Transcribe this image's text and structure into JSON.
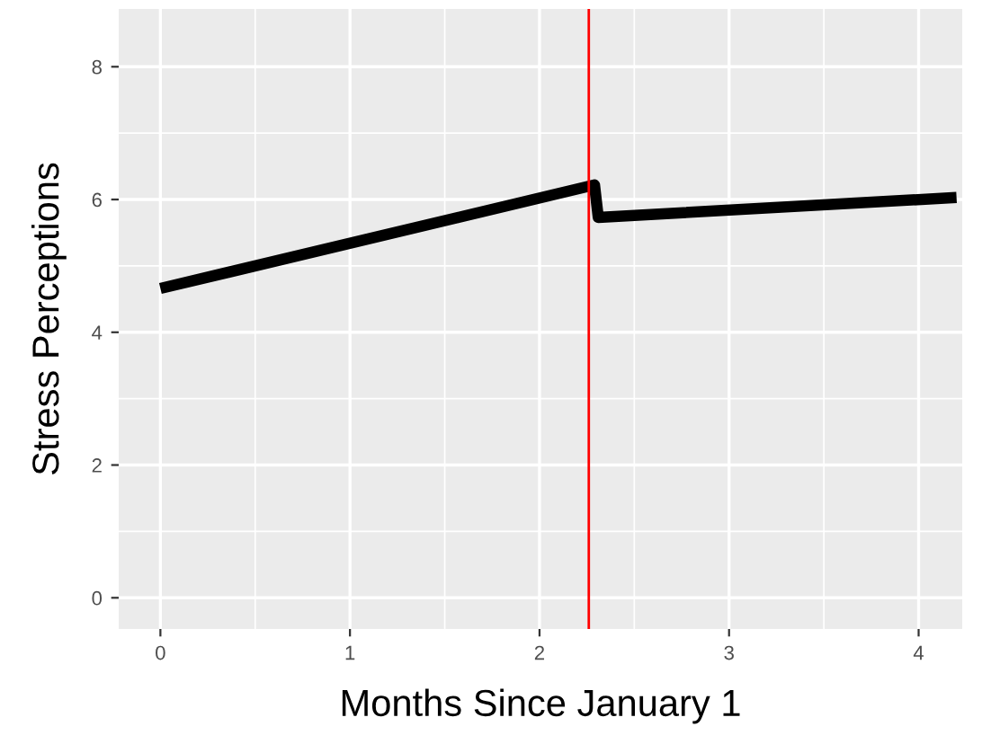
{
  "chart_data": {
    "type": "line",
    "xlabel": "Months Since January 1",
    "ylabel": "Stress Perceptions",
    "series": [
      {
        "color": "#000000",
        "x": [
          0,
          2.29,
          2.31,
          4.2
        ],
        "values": [
          4.66,
          6.22,
          5.73,
          6.03
        ]
      }
    ],
    "xlim": [
      -0.22,
      4.23
    ],
    "ylim": [
      -0.47,
      8.87
    ],
    "xticks": [
      0,
      1,
      2,
      3,
      4
    ],
    "yticks": [
      0,
      2,
      4,
      6,
      8
    ],
    "grid": true,
    "line_style": "solid",
    "marker": "none",
    "ref_lines": [
      {
        "axis": "x",
        "value": 2.26,
        "color": "#ff0000",
        "line_style": "solid"
      }
    ]
  }
}
